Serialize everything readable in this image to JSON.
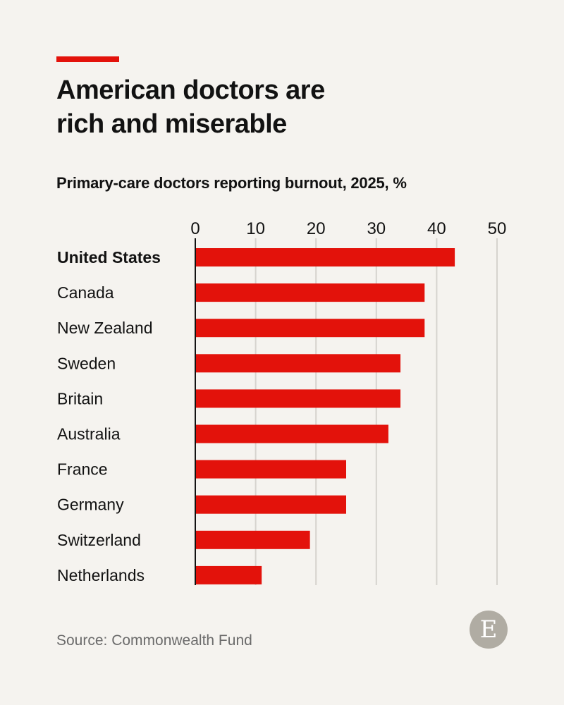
{
  "header": {
    "title_line1": "American doctors are",
    "title_line2": "rich and miserable",
    "subtitle": "Primary-care doctors reporting burnout, 2025, %"
  },
  "footer": {
    "source": "Source: Commonwealth Fund",
    "logo": "E"
  },
  "colors": {
    "bar": "#e3120b",
    "accent": "#e3120b",
    "grid": "#d6d3ce",
    "logo_bg": "#b0aca3"
  },
  "chart_data": {
    "type": "bar",
    "orientation": "horizontal",
    "title": "American doctors are rich and miserable",
    "subtitle": "Primary-care doctors reporting burnout, 2025, %",
    "categories": [
      "United States",
      "Canada",
      "New Zealand",
      "Sweden",
      "Britain",
      "Australia",
      "France",
      "Germany",
      "Switzerland",
      "Netherlands"
    ],
    "highlighted": "United States",
    "values": [
      43,
      38,
      38,
      34,
      34,
      32,
      25,
      25,
      19,
      11
    ],
    "xlim": [
      0,
      50
    ],
    "xticks": [
      "0",
      "10",
      "20",
      "30",
      "40",
      "50"
    ],
    "grid": true,
    "tick_position": "top"
  }
}
